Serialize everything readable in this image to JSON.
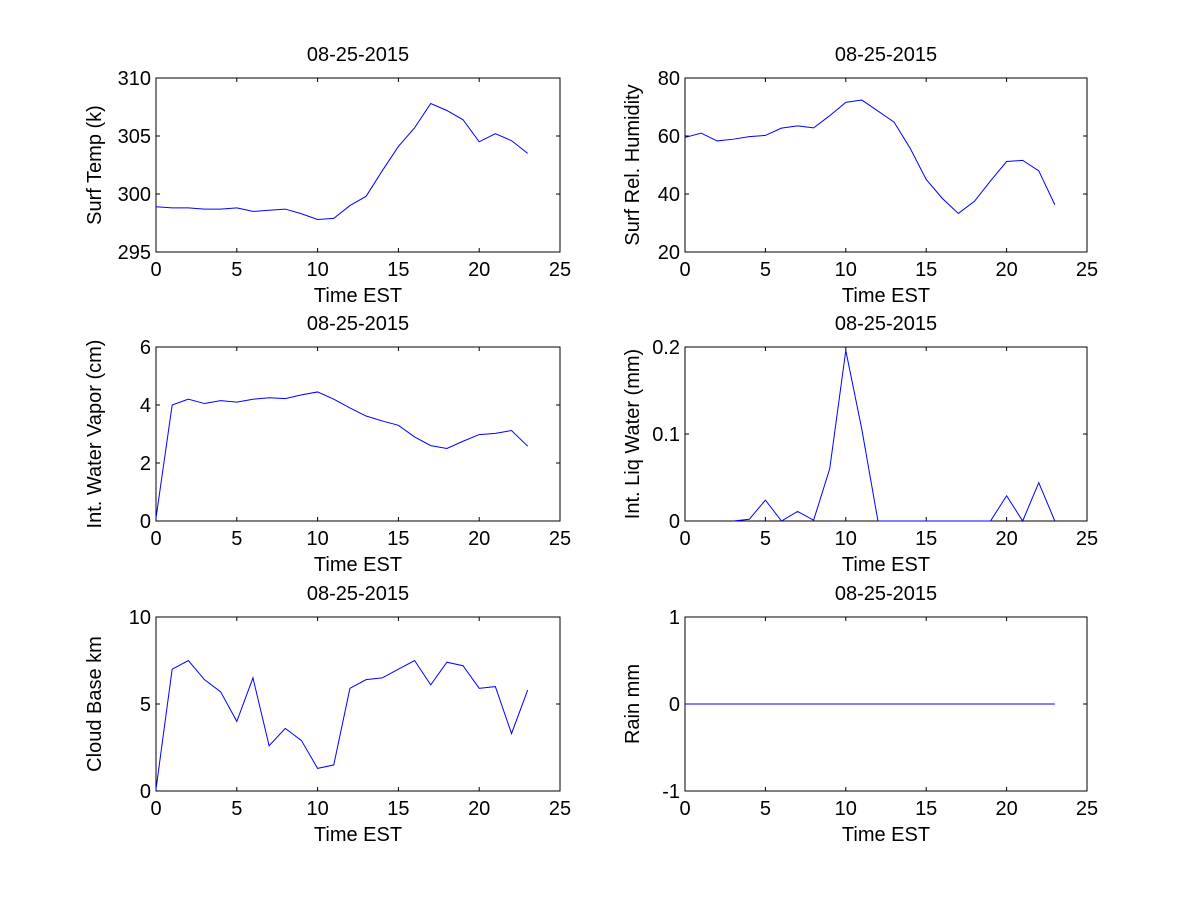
{
  "chart_data": [
    {
      "type": "line",
      "title": "08-25-2015",
      "xlabel": "Time EST",
      "ylabel": "Surf Temp (k)",
      "xlim": [
        0,
        25
      ],
      "ylim": [
        295,
        310
      ],
      "xticks": [
        0,
        5,
        10,
        15,
        20,
        25
      ],
      "yticks": [
        295,
        300,
        305,
        310
      ],
      "grid": false,
      "color": "#0000ff",
      "series": [
        {
          "x": [
            0,
            1,
            2,
            3,
            4,
            5,
            6,
            7,
            8,
            9,
            10,
            11,
            12,
            13,
            14,
            15,
            16,
            17,
            18,
            19,
            20,
            21,
            22,
            23
          ],
          "values": [
            298.9,
            298.8,
            298.8,
            298.7,
            298.7,
            298.8,
            298.5,
            298.6,
            298.7,
            298.3,
            297.8,
            297.9,
            299.0,
            299.8,
            302.0,
            304.1,
            305.7,
            307.8,
            307.2,
            306.4,
            304.5,
            305.2,
            304.6,
            303.5
          ]
        }
      ]
    },
    {
      "type": "line",
      "title": "08-25-2015",
      "xlabel": "Time EST",
      "ylabel": "Surf Rel. Humidity",
      "xlim": [
        0,
        25
      ],
      "ylim": [
        20,
        80
      ],
      "xticks": [
        0,
        5,
        10,
        15,
        20,
        25
      ],
      "yticks": [
        20,
        40,
        60,
        80
      ],
      "grid": false,
      "color": "#0000ff",
      "series": [
        {
          "x": [
            0,
            1,
            2,
            3,
            4,
            5,
            6,
            7,
            8,
            9,
            10,
            11,
            12,
            13,
            14,
            15,
            16,
            17,
            18,
            19,
            20,
            21,
            22,
            23
          ],
          "values": [
            59.5,
            61,
            58.3,
            58.9,
            59.8,
            60.2,
            62.7,
            63.5,
            62.8,
            67,
            71.6,
            72.4,
            68.6,
            64.8,
            55.8,
            45,
            38.5,
            33.3,
            37.5,
            44.5,
            51.2,
            51.6,
            48,
            36.3
          ]
        }
      ]
    },
    {
      "type": "line",
      "title": "08-25-2015",
      "xlabel": "Time EST",
      "ylabel": "Int. Water Vapor (cm)",
      "xlim": [
        0,
        25
      ],
      "ylim": [
        0,
        6
      ],
      "xticks": [
        0,
        5,
        10,
        15,
        20,
        25
      ],
      "yticks": [
        0,
        2,
        4,
        6
      ],
      "grid": false,
      "color": "#0000ff",
      "series": [
        {
          "x": [
            0,
            1,
            2,
            3,
            4,
            5,
            6,
            7,
            8,
            9,
            10,
            11,
            12,
            13,
            14,
            15,
            16,
            17,
            18,
            19,
            20,
            21,
            22,
            23
          ],
          "values": [
            0.1,
            4.0,
            4.2,
            4.05,
            4.15,
            4.1,
            4.2,
            4.25,
            4.22,
            4.35,
            4.45,
            4.2,
            3.9,
            3.62,
            3.45,
            3.3,
            2.9,
            2.6,
            2.5,
            2.75,
            2.98,
            3.02,
            3.12,
            2.58
          ]
        }
      ]
    },
    {
      "type": "line",
      "title": "08-25-2015",
      "xlabel": "Time EST",
      "ylabel": "Int. Liq Water (mm)",
      "xlim": [
        0,
        25
      ],
      "ylim": [
        0,
        0.2
      ],
      "xticks": [
        0,
        5,
        10,
        15,
        20,
        25
      ],
      "yticks": [
        0,
        0.1,
        0.2
      ],
      "grid": false,
      "color": "#0000ff",
      "series": [
        {
          "x": [
            3,
            4,
            5,
            6,
            7,
            8,
            9,
            10,
            11,
            12,
            13,
            14,
            15,
            16,
            17,
            18,
            19,
            20,
            21,
            22,
            23
          ],
          "values": [
            0,
            0.002,
            0.024,
            0,
            0.011,
            0.001,
            0.06,
            0.196,
            0.105,
            0,
            0,
            0,
            0,
            0,
            0,
            0,
            0,
            0.029,
            0,
            0.044,
            0
          ]
        }
      ]
    },
    {
      "type": "line",
      "title": "08-25-2015",
      "xlabel": "Time EST",
      "ylabel": "Cloud Base km",
      "xlim": [
        0,
        25
      ],
      "ylim": [
        0,
        10
      ],
      "xticks": [
        0,
        5,
        10,
        15,
        20,
        25
      ],
      "yticks": [
        0,
        5,
        10
      ],
      "grid": false,
      "color": "#0000ff",
      "series": [
        {
          "x": [
            0,
            1,
            2,
            3,
            4,
            5,
            6,
            7,
            8,
            9,
            10,
            11,
            12,
            13,
            14,
            15,
            16,
            17,
            18,
            19,
            20,
            21,
            22,
            23
          ],
          "values": [
            0.1,
            7.0,
            7.5,
            6.4,
            5.7,
            4.0,
            6.5,
            2.6,
            3.6,
            2.9,
            1.3,
            1.5,
            5.9,
            6.4,
            6.5,
            7.0,
            7.5,
            6.1,
            7.4,
            7.2,
            5.9,
            6.0,
            3.3,
            5.8
          ]
        }
      ]
    },
    {
      "type": "line",
      "title": "08-25-2015",
      "xlabel": "Time EST",
      "ylabel": "Rain mm",
      "xlim": [
        0,
        25
      ],
      "ylim": [
        -1,
        1
      ],
      "xticks": [
        0,
        5,
        10,
        15,
        20,
        25
      ],
      "yticks": [
        -1,
        0,
        1
      ],
      "grid": false,
      "color": "#0000ff",
      "series": [
        {
          "x": [
            0,
            1,
            2,
            3,
            4,
            5,
            6,
            7,
            8,
            9,
            10,
            11,
            12,
            13,
            14,
            15,
            16,
            17,
            18,
            19,
            20,
            21,
            22,
            23
          ],
          "values": [
            0,
            0,
            0,
            0,
            0,
            0,
            0,
            0,
            0,
            0,
            0,
            0,
            0,
            0,
            0,
            0,
            0,
            0,
            0,
            0,
            0,
            0,
            0,
            0
          ]
        }
      ]
    }
  ]
}
